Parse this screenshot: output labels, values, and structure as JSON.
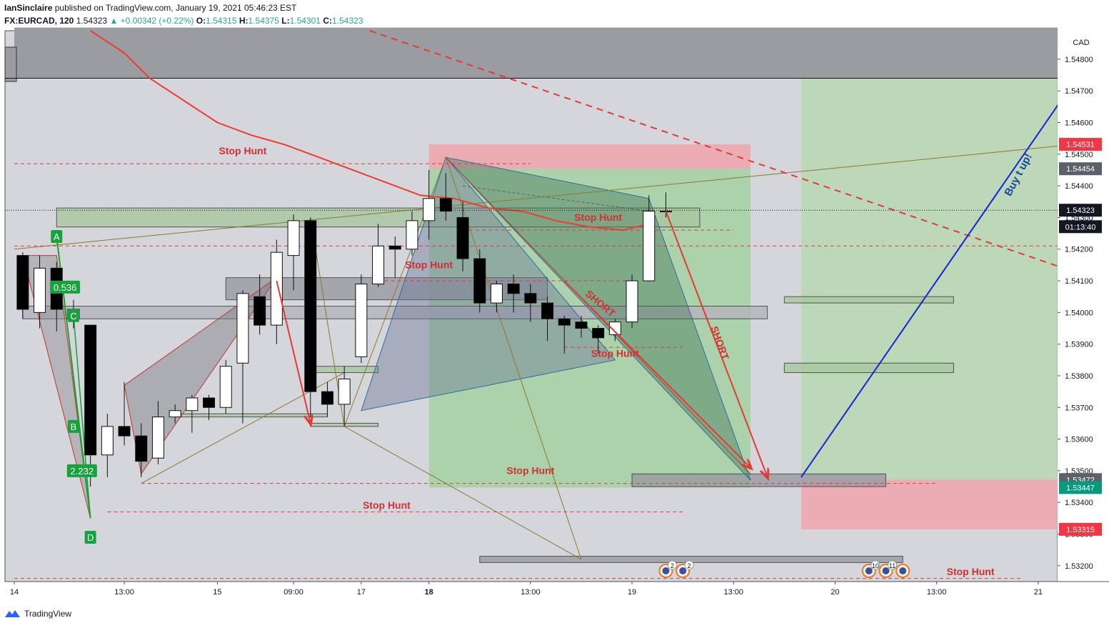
{
  "header": {
    "author": "IanSinclaire",
    "published_text": "published on TradingView.com, January 19, 2021 05:46:23 EST",
    "symbol": "FX:EURCAD, 120",
    "last": "1.54323",
    "change": "+0.00342 (+0.22%)",
    "o_label": "O:",
    "o": "1.54315",
    "h_label": "H:",
    "h": "1.54375",
    "l_label": "L:",
    "l": "1.54301",
    "c_label": "C:",
    "c": "1.54323"
  },
  "footer": {
    "brand": "TradingView"
  },
  "colors": {
    "up": "#ffffff",
    "down": "#000000",
    "ma": "#f23b2f",
    "stop": "#e53935",
    "blue": "#1a23d6",
    "green_zone": "#8fce8a",
    "red_zone": "#f0a4ad"
  },
  "chart_data": {
    "type": "candlestick",
    "currency_label": "CAD",
    "ylim": [
      1.5315,
      1.5489
    ],
    "y_ticks": [
      "1.54800",
      "1.54700",
      "1.54600",
      "1.54500",
      "1.54400",
      "1.54300",
      "1.54200",
      "1.54100",
      "1.54000",
      "1.53900",
      "1.53800",
      "1.53700",
      "1.53600",
      "1.53500",
      "1.53400",
      "1.53300",
      "1.53200"
    ],
    "x_ticks": [
      {
        "label": "14",
        "i": 0
      },
      {
        "label": "13:00",
        "i": 6.5
      },
      {
        "label": "15",
        "i": 12
      },
      {
        "label": "09:00",
        "i": 16.5
      },
      {
        "label": "17",
        "i": 20.5
      },
      {
        "label": "18",
        "i": 24.5
      },
      {
        "label": "13:00",
        "i": 30.5
      },
      {
        "label": "19",
        "i": 36.5
      },
      {
        "label": "13:00",
        "i": 42.5
      },
      {
        "label": "20",
        "i": 48.5
      },
      {
        "label": "13:00",
        "i": 54.5
      },
      {
        "label": "21",
        "i": 60.5
      }
    ],
    "price_tags": [
      {
        "value": "1.54531",
        "price": 1.54531,
        "color": "#f23645"
      },
      {
        "value": "1.54454",
        "price": 1.54454,
        "color": "#5d6069"
      },
      {
        "value": "1.54323",
        "price": 1.54323,
        "color": "#131722"
      },
      {
        "value": "01:13:40",
        "price": 1.54271,
        "color": "#131722"
      },
      {
        "value": "1.53472",
        "price": 1.53472,
        "color": "#5d6069"
      },
      {
        "value": "1.53447",
        "price": 1.53447,
        "color": "#089981"
      },
      {
        "value": "1.53315",
        "price": 1.53315,
        "color": "#f23645"
      }
    ],
    "candles": [
      {
        "i": 0.5,
        "o": 1.5418,
        "h": 1.5419,
        "l": 1.5398,
        "c": 1.5401
      },
      {
        "i": 1.5,
        "o": 1.54,
        "h": 1.5418,
        "l": 1.5395,
        "c": 1.5414
      },
      {
        "i": 2.5,
        "o": 1.5414,
        "h": 1.5416,
        "l": 1.5394,
        "c": 1.5401
      },
      {
        "i": 3.5,
        "o": 1.5401,
        "h": 1.5404,
        "l": 1.5395,
        "c": 1.5398
      },
      {
        "i": 4.5,
        "o": 1.5396,
        "h": 1.5396,
        "l": 1.5345,
        "c": 1.5355
      },
      {
        "i": 5.5,
        "o": 1.5355,
        "h": 1.5368,
        "l": 1.5348,
        "c": 1.5364
      },
      {
        "i": 6.5,
        "o": 1.5364,
        "h": 1.5378,
        "l": 1.5358,
        "c": 1.5361
      },
      {
        "i": 7.5,
        "o": 1.5361,
        "h": 1.5365,
        "l": 1.5348,
        "c": 1.5353
      },
      {
        "i": 8.5,
        "o": 1.5354,
        "h": 1.5372,
        "l": 1.5352,
        "c": 1.5367
      },
      {
        "i": 9.5,
        "o": 1.5367,
        "h": 1.5371,
        "l": 1.5365,
        "c": 1.5369
      },
      {
        "i": 10.5,
        "o": 1.5369,
        "h": 1.5374,
        "l": 1.5362,
        "c": 1.5373
      },
      {
        "i": 11.5,
        "o": 1.5373,
        "h": 1.5374,
        "l": 1.5366,
        "c": 1.537
      },
      {
        "i": 12.5,
        "o": 1.537,
        "h": 1.5385,
        "l": 1.5368,
        "c": 1.5383
      },
      {
        "i": 13.5,
        "o": 1.5384,
        "h": 1.5407,
        "l": 1.5365,
        "c": 1.5406
      },
      {
        "i": 14.5,
        "o": 1.5405,
        "h": 1.5412,
        "l": 1.5393,
        "c": 1.5396
      },
      {
        "i": 15.5,
        "o": 1.5396,
        "h": 1.5423,
        "l": 1.539,
        "c": 1.5419
      },
      {
        "i": 16.5,
        "o": 1.5418,
        "h": 1.5431,
        "l": 1.5407,
        "c": 1.5429
      },
      {
        "i": 17.5,
        "o": 1.5429,
        "h": 1.543,
        "l": 1.5367,
        "c": 1.5375
      },
      {
        "i": 18.5,
        "o": 1.5375,
        "h": 1.5378,
        "l": 1.5367,
        "c": 1.5371
      },
      {
        "i": 19.5,
        "o": 1.5371,
        "h": 1.5383,
        "l": 1.5364,
        "c": 1.5379
      },
      {
        "i": 20.5,
        "o": 1.5386,
        "h": 1.5412,
        "l": 1.5384,
        "c": 1.5409
      },
      {
        "i": 21.5,
        "o": 1.5409,
        "h": 1.5428,
        "l": 1.5408,
        "c": 1.5421
      },
      {
        "i": 22.5,
        "o": 1.5421,
        "h": 1.5424,
        "l": 1.5411,
        "c": 1.542
      },
      {
        "i": 23.5,
        "o": 1.542,
        "h": 1.5432,
        "l": 1.5418,
        "c": 1.5429
      },
      {
        "i": 24.5,
        "o": 1.5429,
        "h": 1.5445,
        "l": 1.5423,
        "c": 1.5436
      },
      {
        "i": 25.5,
        "o": 1.5436,
        "h": 1.5444,
        "l": 1.5429,
        "c": 1.5432
      },
      {
        "i": 26.5,
        "o": 1.543,
        "h": 1.5435,
        "l": 1.5413,
        "c": 1.5417
      },
      {
        "i": 27.5,
        "o": 1.5417,
        "h": 1.542,
        "l": 1.54,
        "c": 1.5403
      },
      {
        "i": 28.5,
        "o": 1.5403,
        "h": 1.541,
        "l": 1.54,
        "c": 1.5409
      },
      {
        "i": 29.5,
        "o": 1.5409,
        "h": 1.5412,
        "l": 1.54,
        "c": 1.5406
      },
      {
        "i": 30.5,
        "o": 1.5406,
        "h": 1.5409,
        "l": 1.5397,
        "c": 1.5403
      },
      {
        "i": 31.5,
        "o": 1.5403,
        "h": 1.5405,
        "l": 1.5391,
        "c": 1.5398
      },
      {
        "i": 32.5,
        "o": 1.5398,
        "h": 1.5399,
        "l": 1.5387,
        "c": 1.5396
      },
      {
        "i": 33.5,
        "o": 1.5397,
        "h": 1.5399,
        "l": 1.5392,
        "c": 1.5395
      },
      {
        "i": 34.5,
        "o": 1.5395,
        "h": 1.5396,
        "l": 1.5387,
        "c": 1.5392
      },
      {
        "i": 35.5,
        "o": 1.5393,
        "h": 1.5398,
        "l": 1.5391,
        "c": 1.5397
      },
      {
        "i": 36.5,
        "o": 1.5397,
        "h": 1.5412,
        "l": 1.5395,
        "c": 1.541
      },
      {
        "i": 37.5,
        "o": 1.541,
        "h": 1.5437,
        "l": 1.541,
        "c": 1.5432
      },
      {
        "i": 38.5,
        "o": 1.5432,
        "h": 1.5438,
        "l": 1.543,
        "c": 1.5432
      }
    ],
    "ma_points": [
      [
        4.5,
        1.5489
      ],
      [
        6.5,
        1.5482
      ],
      [
        8,
        1.5474
      ],
      [
        10,
        1.5467
      ],
      [
        12,
        1.546
      ],
      [
        14,
        1.5456
      ],
      [
        16,
        1.5453
      ],
      [
        18,
        1.5449
      ],
      [
        20,
        1.5445
      ],
      [
        22,
        1.5441
      ],
      [
        24,
        1.5437
      ],
      [
        26,
        1.5436
      ],
      [
        28,
        1.5433
      ],
      [
        30,
        1.5432
      ],
      [
        32,
        1.5429
      ],
      [
        34,
        1.5427
      ],
      [
        36,
        1.5426
      ],
      [
        37.5,
        1.5428
      ]
    ],
    "zones": [
      {
        "kind": "red",
        "x0": 24.5,
        "x1": 43.5,
        "y0": 1.54531,
        "y1": 1.54454
      },
      {
        "kind": "green",
        "x0": 24.5,
        "x1": 43.5,
        "y0": 1.54454,
        "y1": 1.53447
      },
      {
        "kind": "green2",
        "x0": 46.5,
        "x1": 62.5,
        "y0": 1.548,
        "y1": 1.53472
      },
      {
        "kind": "red",
        "x0": 46.5,
        "x1": 62.5,
        "y0": 1.53472,
        "y1": 1.53315
      },
      {
        "kind": "grey",
        "x0": 0,
        "x1": 62.5,
        "y0": 1.549,
        "y1": 1.5474
      }
    ],
    "boxes": [
      {
        "x0": 2.5,
        "x1": 40.5,
        "y0": 1.5433,
        "y1": 1.5427,
        "fill": "#a8c8a0"
      },
      {
        "x0": 12.5,
        "x1": 31.5,
        "y0": 1.5411,
        "y1": 1.5404,
        "fill": "#9a9aa2"
      },
      {
        "x0": 0.5,
        "x1": 44.5,
        "y0": 1.5402,
        "y1": 1.5398,
        "fill": "#b4b4bc"
      },
      {
        "x0": 45.5,
        "x1": 55.5,
        "y0": 1.5405,
        "y1": 1.5403,
        "fill": "#a8c8a0"
      },
      {
        "x0": 45.5,
        "x1": 55.5,
        "y0": 1.5384,
        "y1": 1.5381,
        "fill": "#a8c8a0"
      },
      {
        "x0": 17.5,
        "x1": 21.5,
        "y0": 1.5383,
        "y1": 1.5381,
        "fill": "#a8c8a0"
      },
      {
        "x0": 9.5,
        "x1": 18.5,
        "y0": 1.5368,
        "y1": 1.5367,
        "fill": "#a8c8a0"
      },
      {
        "x0": 17.5,
        "x1": 21.5,
        "y0": 1.5365,
        "y1": 1.5364,
        "fill": "#a8c8a0"
      },
      {
        "x0": 36.5,
        "x1": 51.5,
        "y0": 1.5349,
        "y1": 1.5345,
        "fill": "#9a9aa2"
      },
      {
        "x0": 27.5,
        "x1": 52.5,
        "y0": 1.5323,
        "y1": 1.5321,
        "fill": "#9a9aa2"
      }
    ],
    "stop_lines": [
      {
        "x0": 0,
        "x1": 30.5,
        "y": 1.5447
      },
      {
        "x0": 0,
        "x1": 62.5,
        "y": 1.5421
      },
      {
        "x0": 26.5,
        "x1": 42.5,
        "y": 1.5426
      },
      {
        "x0": 7.5,
        "x1": 54.5,
        "y": 1.5346
      },
      {
        "x0": 5.5,
        "x1": 39.5,
        "y": 1.5337
      },
      {
        "x0": 0,
        "x1": 59.5,
        "y": 1.5316
      },
      {
        "x0": 32.5,
        "x1": 39.5,
        "y": 1.5389
      },
      {
        "x0": 21.5,
        "x1": 36.5,
        "y": 1.541
      }
    ],
    "labels": [
      {
        "text": "Stop Hunt",
        "i": 13.5,
        "price": 1.545
      },
      {
        "text": "Stop Hunt",
        "i": 34.5,
        "price": 1.5429
      },
      {
        "text": "Stop Hunt",
        "i": 24.5,
        "price": 1.5414
      },
      {
        "text": "Stop Hunt",
        "i": 35.5,
        "price": 1.5386
      },
      {
        "text": "Stop Hunt",
        "i": 30.5,
        "price": 1.5349
      },
      {
        "text": "Stop Hunt",
        "i": 22.0,
        "price": 1.5338
      },
      {
        "text": "Stop Hunt",
        "i": 56.5,
        "price": 1.5317
      }
    ],
    "short_labels": [
      {
        "text": "SHORT",
        "i": 34.5,
        "price": 1.5402,
        "rot": 40
      },
      {
        "text": "SHORT",
        "i": 41.5,
        "price": 1.539,
        "rot": 70
      }
    ],
    "buy_label": {
      "text": "Buy t up!",
      "i": 59.5,
      "price": 1.5443,
      "rot": -62
    },
    "fib_labels": [
      {
        "text": "A",
        "i": 2.5,
        "price": 1.5424
      },
      {
        "text": "0.536",
        "i": 3.0,
        "price": 1.5408
      },
      {
        "text": "C",
        "i": 3.5,
        "price": 1.5399
      },
      {
        "text": "B",
        "i": 3.5,
        "price": 1.5364
      },
      {
        "text": "2.232",
        "i": 4.0,
        "price": 1.535
      },
      {
        "text": "D",
        "i": 4.5,
        "price": 1.5329
      }
    ],
    "events": [
      {
        "i": 38.5,
        "badge": "2"
      },
      {
        "i": 39.5,
        "badge": "2"
      },
      {
        "i": 50.5,
        "badge": "10"
      },
      {
        "i": 51.5,
        "badge": "11"
      },
      {
        "i": 52.5,
        "badge": ""
      }
    ]
  }
}
